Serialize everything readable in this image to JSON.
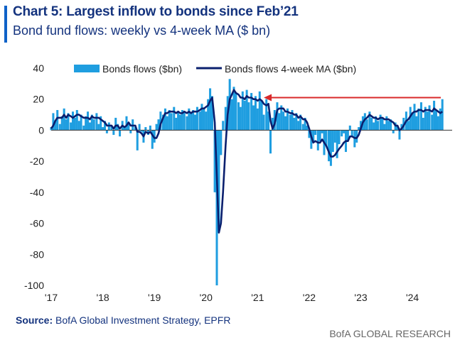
{
  "header": {
    "title": "Chart 5: Largest inflow to bonds since Feb’21",
    "subtitle": "Bond fund flows: weekly vs 4-week MA ($ bn)"
  },
  "footer": {
    "source_label": "Source:",
    "source_text": "BofA Global Investment Strategy, EPFR",
    "brand": "BofA GLOBAL RESEARCH"
  },
  "colors": {
    "bars": "#1f9ee0",
    "ma_line": "#0a1f6e",
    "arrow": "#d9292a",
    "title": "#14337e"
  },
  "chart_data": {
    "type": "bar",
    "title": "Chart 5: Largest inflow to bonds since Feb’21",
    "subtitle": "Bond fund flows: weekly vs 4-week MA ($ bn)",
    "ylim": [
      -100,
      40
    ],
    "yticks": [
      40,
      20,
      0,
      -20,
      -40,
      -60,
      -80,
      -100
    ],
    "ytick_labels": [
      "40",
      "20",
      "0",
      "-20",
      "-40",
      "-60",
      "-80",
      "-100"
    ],
    "xlim": [
      2017.0,
      2024.77
    ],
    "xticks": [
      2017,
      2018,
      2019,
      2020,
      2021,
      2022,
      2023,
      2024
    ],
    "xtick_labels": [
      "'17",
      "'18",
      "'19",
      "'20",
      "'21",
      "'22",
      "'23",
      "'24"
    ],
    "grid": false,
    "legend_position": "top",
    "series": [
      {
        "name": "Bonds flows ($bn)",
        "kind": "bar",
        "x": [
          2017.0,
          2017.04,
          2017.08,
          2017.12,
          2017.17,
          2017.21,
          2017.25,
          2017.29,
          2017.33,
          2017.38,
          2017.42,
          2017.46,
          2017.5,
          2017.54,
          2017.58,
          2017.63,
          2017.67,
          2017.71,
          2017.75,
          2017.79,
          2017.83,
          2017.88,
          2017.92,
          2017.96,
          2018.0,
          2018.04,
          2018.08,
          2018.12,
          2018.17,
          2018.21,
          2018.25,
          2018.29,
          2018.33,
          2018.38,
          2018.42,
          2018.46,
          2018.5,
          2018.54,
          2018.58,
          2018.63,
          2018.67,
          2018.71,
          2018.75,
          2018.79,
          2018.83,
          2018.88,
          2018.92,
          2018.96,
          2019.0,
          2019.04,
          2019.08,
          2019.12,
          2019.17,
          2019.21,
          2019.25,
          2019.29,
          2019.33,
          2019.38,
          2019.42,
          2019.46,
          2019.5,
          2019.54,
          2019.58,
          2019.63,
          2019.67,
          2019.71,
          2019.75,
          2019.79,
          2019.83,
          2019.88,
          2019.92,
          2019.96,
          2020.0,
          2020.04,
          2020.08,
          2020.12,
          2020.17,
          2020.21,
          2020.25,
          2020.29,
          2020.33,
          2020.38,
          2020.42,
          2020.46,
          2020.5,
          2020.54,
          2020.58,
          2020.63,
          2020.67,
          2020.71,
          2020.75,
          2020.79,
          2020.83,
          2020.88,
          2020.92,
          2020.96,
          2021.0,
          2021.04,
          2021.08,
          2021.12,
          2021.17,
          2021.21,
          2021.25,
          2021.29,
          2021.33,
          2021.38,
          2021.42,
          2021.46,
          2021.5,
          2021.54,
          2021.58,
          2021.63,
          2021.67,
          2021.71,
          2021.75,
          2021.79,
          2021.83,
          2021.88,
          2021.92,
          2021.96,
          2022.0,
          2022.04,
          2022.08,
          2022.12,
          2022.17,
          2022.21,
          2022.25,
          2022.29,
          2022.33,
          2022.38,
          2022.42,
          2022.46,
          2022.5,
          2022.54,
          2022.58,
          2022.63,
          2022.67,
          2022.71,
          2022.75,
          2022.79,
          2022.83,
          2022.88,
          2022.92,
          2022.96,
          2023.0,
          2023.04,
          2023.08,
          2023.12,
          2023.17,
          2023.21,
          2023.25,
          2023.29,
          2023.33,
          2023.38,
          2023.42,
          2023.46,
          2023.5,
          2023.54,
          2023.58,
          2023.63,
          2023.67,
          2023.71,
          2023.75,
          2023.79,
          2023.83,
          2023.88,
          2023.92,
          2023.96,
          2024.0,
          2024.04,
          2024.08,
          2024.12,
          2024.17,
          2024.21,
          2024.25,
          2024.29,
          2024.33,
          2024.38,
          2024.42,
          2024.46,
          2024.5,
          2024.54,
          2024.58
        ],
        "values": [
          2,
          11,
          6,
          13,
          4,
          9,
          14,
          7,
          11,
          5,
          12,
          8,
          13,
          6,
          10,
          3,
          9,
          12,
          5,
          10,
          7,
          11,
          4,
          9,
          2,
          6,
          -2,
          5,
          3,
          -3,
          8,
          4,
          -4,
          6,
          2,
          9,
          5,
          -2,
          7,
          2,
          -13,
          4,
          -1,
          -8,
          2,
          -3,
          3,
          -12,
          -8,
          4,
          7,
          12,
          10,
          14,
          9,
          13,
          11,
          15,
          8,
          12,
          10,
          13,
          12,
          9,
          14,
          11,
          13,
          10,
          15,
          12,
          17,
          14,
          12,
          20,
          27,
          22,
          -40,
          -100,
          -62,
          -16,
          6,
          15,
          22,
          33,
          20,
          28,
          24,
          18,
          15,
          25,
          19,
          26,
          18,
          24,
          16,
          22,
          14,
          25,
          19,
          10,
          20,
          12,
          -15,
          8,
          13,
          18,
          11,
          16,
          12,
          9,
          14,
          10,
          13,
          8,
          11,
          6,
          10,
          4,
          8,
          3,
          -5,
          -12,
          -8,
          -3,
          -13,
          -7,
          -2,
          -16,
          -10,
          -20,
          -23,
          -14,
          -8,
          -18,
          -9,
          -4,
          -2,
          -14,
          -7,
          3,
          -4,
          -11,
          -8,
          2,
          6,
          9,
          11,
          7,
          12,
          8,
          5,
          9,
          6,
          10,
          8,
          4,
          9,
          6,
          7,
          -2,
          5,
          3,
          -6,
          4,
          8,
          12,
          6,
          15,
          11,
          17,
          9,
          14,
          18,
          8,
          15,
          12,
          16,
          10,
          19,
          13,
          9,
          14,
          20
        ]
      },
      {
        "name": "Bonds flows 4-week MA ($bn)",
        "kind": "line",
        "x": [
          2017.0,
          2017.04,
          2017.08,
          2017.12,
          2017.17,
          2017.21,
          2017.25,
          2017.29,
          2017.33,
          2017.38,
          2017.42,
          2017.46,
          2017.5,
          2017.54,
          2017.58,
          2017.63,
          2017.67,
          2017.71,
          2017.75,
          2017.79,
          2017.83,
          2017.88,
          2017.92,
          2017.96,
          2018.0,
          2018.04,
          2018.08,
          2018.12,
          2018.17,
          2018.21,
          2018.25,
          2018.29,
          2018.33,
          2018.38,
          2018.42,
          2018.46,
          2018.5,
          2018.54,
          2018.58,
          2018.63,
          2018.67,
          2018.71,
          2018.75,
          2018.79,
          2018.83,
          2018.88,
          2018.92,
          2018.96,
          2019.0,
          2019.04,
          2019.08,
          2019.12,
          2019.17,
          2019.21,
          2019.25,
          2019.29,
          2019.33,
          2019.38,
          2019.42,
          2019.46,
          2019.5,
          2019.54,
          2019.58,
          2019.63,
          2019.67,
          2019.71,
          2019.75,
          2019.79,
          2019.83,
          2019.88,
          2019.92,
          2019.96,
          2020.0,
          2020.04,
          2020.08,
          2020.12,
          2020.17,
          2020.21,
          2020.25,
          2020.29,
          2020.33,
          2020.38,
          2020.42,
          2020.46,
          2020.5,
          2020.54,
          2020.58,
          2020.63,
          2020.67,
          2020.71,
          2020.75,
          2020.79,
          2020.83,
          2020.88,
          2020.92,
          2020.96,
          2021.0,
          2021.04,
          2021.08,
          2021.12,
          2021.17,
          2021.21,
          2021.25,
          2021.29,
          2021.33,
          2021.38,
          2021.42,
          2021.46,
          2021.5,
          2021.54,
          2021.58,
          2021.63,
          2021.67,
          2021.71,
          2021.75,
          2021.79,
          2021.83,
          2021.88,
          2021.92,
          2021.96,
          2022.0,
          2022.04,
          2022.08,
          2022.12,
          2022.17,
          2022.21,
          2022.25,
          2022.29,
          2022.33,
          2022.38,
          2022.42,
          2022.46,
          2022.5,
          2022.54,
          2022.58,
          2022.63,
          2022.67,
          2022.71,
          2022.75,
          2022.79,
          2022.83,
          2022.88,
          2022.92,
          2022.96,
          2023.0,
          2023.04,
          2023.08,
          2023.12,
          2023.17,
          2023.21,
          2023.25,
          2023.29,
          2023.33,
          2023.38,
          2023.42,
          2023.46,
          2023.5,
          2023.54,
          2023.58,
          2023.63,
          2023.67,
          2023.71,
          2023.75,
          2023.79,
          2023.83,
          2023.88,
          2023.92,
          2023.96,
          2024.0,
          2024.04,
          2024.08,
          2024.12,
          2024.17,
          2024.21,
          2024.25,
          2024.29,
          2024.33,
          2024.38,
          2024.42,
          2024.46,
          2024.5,
          2024.54,
          2024.58
        ],
        "values": [
          1,
          3,
          6,
          8,
          8,
          8,
          10,
          8,
          10,
          9,
          8,
          9,
          10,
          10,
          9,
          8,
          8,
          8,
          7,
          9,
          8,
          8,
          8,
          7,
          6,
          5,
          3,
          3,
          3,
          1,
          3,
          3,
          1,
          3,
          2,
          3,
          5,
          3,
          3,
          3,
          -1,
          -1,
          -2,
          -4,
          -1,
          -2,
          -1,
          -3,
          -5,
          -5,
          -2,
          4,
          8,
          11,
          11,
          12,
          12,
          12,
          11,
          12,
          11,
          11,
          12,
          11,
          12,
          11,
          12,
          12,
          12,
          13,
          14,
          14,
          15,
          16,
          19,
          21,
          5,
          -30,
          -66,
          -60,
          -40,
          -10,
          10,
          20,
          23,
          26,
          24,
          23,
          21,
          21,
          20,
          22,
          21,
          21,
          20,
          20,
          19,
          20,
          19,
          17,
          16,
          17,
          6,
          1,
          4,
          13,
          14,
          14,
          14,
          12,
          12,
          11,
          11,
          10,
          10,
          8,
          9,
          7,
          7,
          5,
          1,
          -4,
          -8,
          -7,
          -8,
          -8,
          -6,
          -8,
          -10,
          -14,
          -17,
          -17,
          -16,
          -14,
          -12,
          -10,
          -8,
          -7,
          -7,
          -4,
          -4,
          -5,
          -5,
          -3,
          1,
          5,
          7,
          8,
          10,
          9,
          8,
          8,
          7,
          8,
          8,
          7,
          7,
          7,
          6,
          5,
          3,
          3,
          0,
          1,
          3,
          6,
          7,
          9,
          11,
          12,
          12,
          13,
          13,
          12,
          13,
          13,
          13,
          12,
          14,
          13,
          12,
          11,
          12
        ]
      }
    ],
    "annotation": {
      "type": "arrow",
      "color": "red",
      "x_start": 2024.55,
      "x_end": 2021.12,
      "y": 21
    }
  }
}
